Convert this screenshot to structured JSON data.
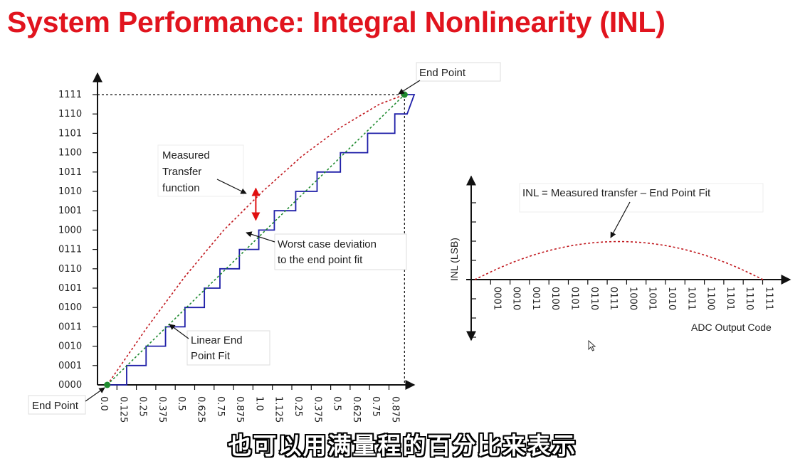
{
  "slide": {
    "title": "System Performance: Integral Nonlinearity (INL)",
    "subtitle": "也可以用满量程的百分比来表示"
  },
  "colors": {
    "title": "#e1141e",
    "measured": "#1f1fa8",
    "ideal_curve": "#c0161c",
    "end_point_fit": "#1e8a2e",
    "end_point_marker": "#1e8a2e",
    "deviation_arrow": "#e01010",
    "axis": "#111111"
  },
  "chart_data": [
    {
      "type": "line",
      "ylabel": "",
      "xlabel": "",
      "y_categories": [
        "0000",
        "0001",
        "0010",
        "0011",
        "0100",
        "0101",
        "0110",
        "0111",
        "1000",
        "1001",
        "1010",
        "1011",
        "1100",
        "1101",
        "1110",
        "1111"
      ],
      "x_tick_labels": [
        "0.0",
        "0.125",
        "0.25",
        "0.375",
        "0.5",
        "0.625",
        "0.75",
        "0.875",
        "1.0",
        "1.125",
        "0.25",
        "0.375",
        "0.5",
        "0.625",
        "0.75",
        "0.875"
      ],
      "xlim": [
        0,
        16
      ],
      "ylim": [
        0,
        15
      ],
      "series": [
        {
          "role": "measured",
          "x_edges": [
            0.5,
            1.5,
            2.5,
            3.5,
            4.5,
            5.5,
            6.3,
            7.3,
            8.3,
            9.1,
            10.2,
            11.3,
            12.5,
            13.9,
            15.3,
            16.3
          ],
          "levels": [
            0,
            1,
            2,
            3,
            4,
            5,
            6,
            7,
            8,
            9,
            10,
            11,
            12,
            13,
            14,
            15
          ]
        },
        {
          "role": "curve",
          "x": [
            0.5,
            2.5,
            4.5,
            6.5,
            8.5,
            10.5,
            12.5,
            14.5,
            15.8
          ],
          "y": [
            0,
            2.9,
            5.6,
            8.0,
            10.0,
            11.8,
            13.3,
            14.5,
            15
          ]
        },
        {
          "role": "end-point-fit",
          "x": [
            0.5,
            15.8
          ],
          "y": [
            0,
            15
          ]
        }
      ],
      "annotations": {
        "end_point_top": "End Point",
        "end_point_bottom": "End Point",
        "measured_label": [
          "Measured",
          "Transfer",
          "function"
        ],
        "deviation_label": [
          "Worst case deviation",
          "to the end point fit"
        ],
        "fit_label": [
          "Linear End",
          "Point Fit"
        ],
        "deviation": {
          "x": 8.0,
          "y_from": 8.3,
          "y_to": 10.3
        }
      }
    },
    {
      "type": "line",
      "ylabel": "INL (LSB)",
      "xlabel": "ADC Output Code",
      "x_categories": [
        "0001",
        "0010",
        "0011",
        "0100",
        "0101",
        "0110",
        "0111",
        "1000",
        "1001",
        "1010",
        "1011",
        "1100",
        "1101",
        "1110",
        "1111"
      ],
      "xlim": [
        0,
        15
      ],
      "series": [
        {
          "role": "inl",
          "x": [
            0,
            1.5,
            3,
            4.5,
            6,
            7.5,
            9,
            10.5,
            12,
            13.5,
            15
          ],
          "y": [
            0,
            0.36,
            0.64,
            0.84,
            0.96,
            1.0,
            0.96,
            0.84,
            0.64,
            0.36,
            0
          ]
        }
      ],
      "annotations": {
        "formula": "INL = Measured transfer – End Point Fit"
      }
    }
  ]
}
